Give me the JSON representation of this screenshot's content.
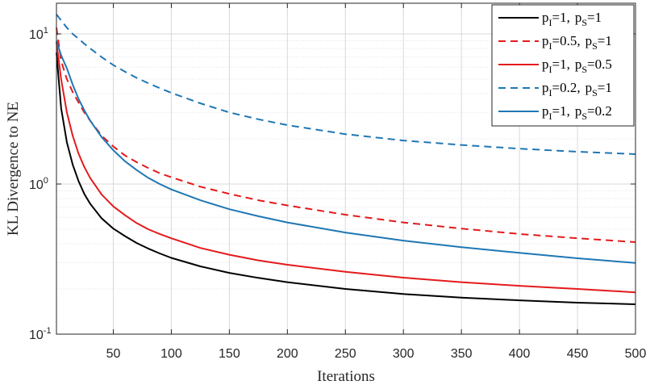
{
  "chart_data": {
    "type": "line",
    "title": "",
    "xlabel": "Iterations",
    "ylabel": "KL Divergence to NE",
    "xlim": [
      1,
      500
    ],
    "ylim": [
      0.1,
      15
    ],
    "yscale": "log",
    "grid": true,
    "minor_grid_y": true,
    "legend_placement": "top-right",
    "x_ticks": [
      50,
      100,
      150,
      200,
      250,
      300,
      350,
      400,
      450,
      500
    ],
    "x_tick_labels": [
      "50",
      "100",
      "150",
      "200",
      "250",
      "300",
      "350",
      "400",
      "450",
      "500"
    ],
    "y_ticks": [
      0.1,
      1,
      10
    ],
    "y_tick_labels": [
      {
        "base": "10",
        "exp": "-1"
      },
      {
        "base": "10",
        "exp": "0"
      },
      {
        "base": "10",
        "exp": "1"
      }
    ],
    "x": [
      1,
      5,
      10,
      15,
      20,
      25,
      30,
      40,
      50,
      60,
      70,
      80,
      90,
      100,
      125,
      150,
      175,
      200,
      250,
      300,
      350,
      400,
      450,
      500
    ],
    "series": [
      {
        "name_parts": [
          {
            "p": "p",
            "sub": "I",
            "v": "=1,"
          },
          {
            "p": "p",
            "sub": "S",
            "v": "=1"
          }
        ],
        "color": "#000000",
        "dash": "solid",
        "values": [
          7.5,
          3.2,
          1.9,
          1.35,
          1.05,
          0.86,
          0.74,
          0.59,
          0.505,
          0.45,
          0.405,
          0.372,
          0.345,
          0.322,
          0.283,
          0.256,
          0.237,
          0.222,
          0.2,
          0.185,
          0.175,
          0.168,
          0.162,
          0.158
        ]
      },
      {
        "name_parts": [
          {
            "p": "p",
            "sub": "I",
            "v": "=0.5,"
          },
          {
            "p": "p",
            "sub": "S",
            "v": "=1"
          }
        ],
        "color": "#e41a1c",
        "dash": "dashed",
        "values": [
          11,
          6.6,
          5.0,
          4.1,
          3.5,
          3.0,
          2.65,
          2.1,
          1.78,
          1.55,
          1.4,
          1.28,
          1.18,
          1.11,
          0.96,
          0.86,
          0.78,
          0.72,
          0.625,
          0.555,
          0.505,
          0.465,
          0.435,
          0.41
        ]
      },
      {
        "name_parts": [
          {
            "p": "p",
            "sub": "I",
            "v": "=1,"
          },
          {
            "p": "p",
            "sub": "S",
            "v": "=0.5"
          }
        ],
        "color": "#e41a1c",
        "dash": "solid",
        "values": [
          8.8,
          5.0,
          3.0,
          2.1,
          1.6,
          1.3,
          1.1,
          0.85,
          0.71,
          0.62,
          0.55,
          0.5,
          0.465,
          0.435,
          0.375,
          0.338,
          0.31,
          0.29,
          0.26,
          0.238,
          0.222,
          0.21,
          0.2,
          0.19
        ]
      },
      {
        "name_parts": [
          {
            "p": "p",
            "sub": "I",
            "v": "=0.2,"
          },
          {
            "p": "p",
            "sub": "S",
            "v": "=1"
          }
        ],
        "color": "#1f77b4",
        "dash": "dashed",
        "values": [
          13.5,
          12.3,
          11.0,
          10.0,
          9.3,
          8.6,
          8.0,
          7.0,
          6.2,
          5.6,
          5.1,
          4.7,
          4.35,
          4.05,
          3.45,
          3.0,
          2.7,
          2.47,
          2.15,
          1.95,
          1.82,
          1.72,
          1.64,
          1.58
        ]
      },
      {
        "name_parts": [
          {
            "p": "p",
            "sub": "I",
            "v": "=1,"
          },
          {
            "p": "p",
            "sub": "S",
            "v": "=0.2"
          }
        ],
        "color": "#1f77b4",
        "dash": "solid",
        "values": [
          9.0,
          7.2,
          5.9,
          4.6,
          3.7,
          3.1,
          2.65,
          2.05,
          1.68,
          1.42,
          1.24,
          1.1,
          1.0,
          0.92,
          0.78,
          0.68,
          0.61,
          0.555,
          0.475,
          0.42,
          0.38,
          0.348,
          0.32,
          0.298
        ]
      }
    ]
  }
}
